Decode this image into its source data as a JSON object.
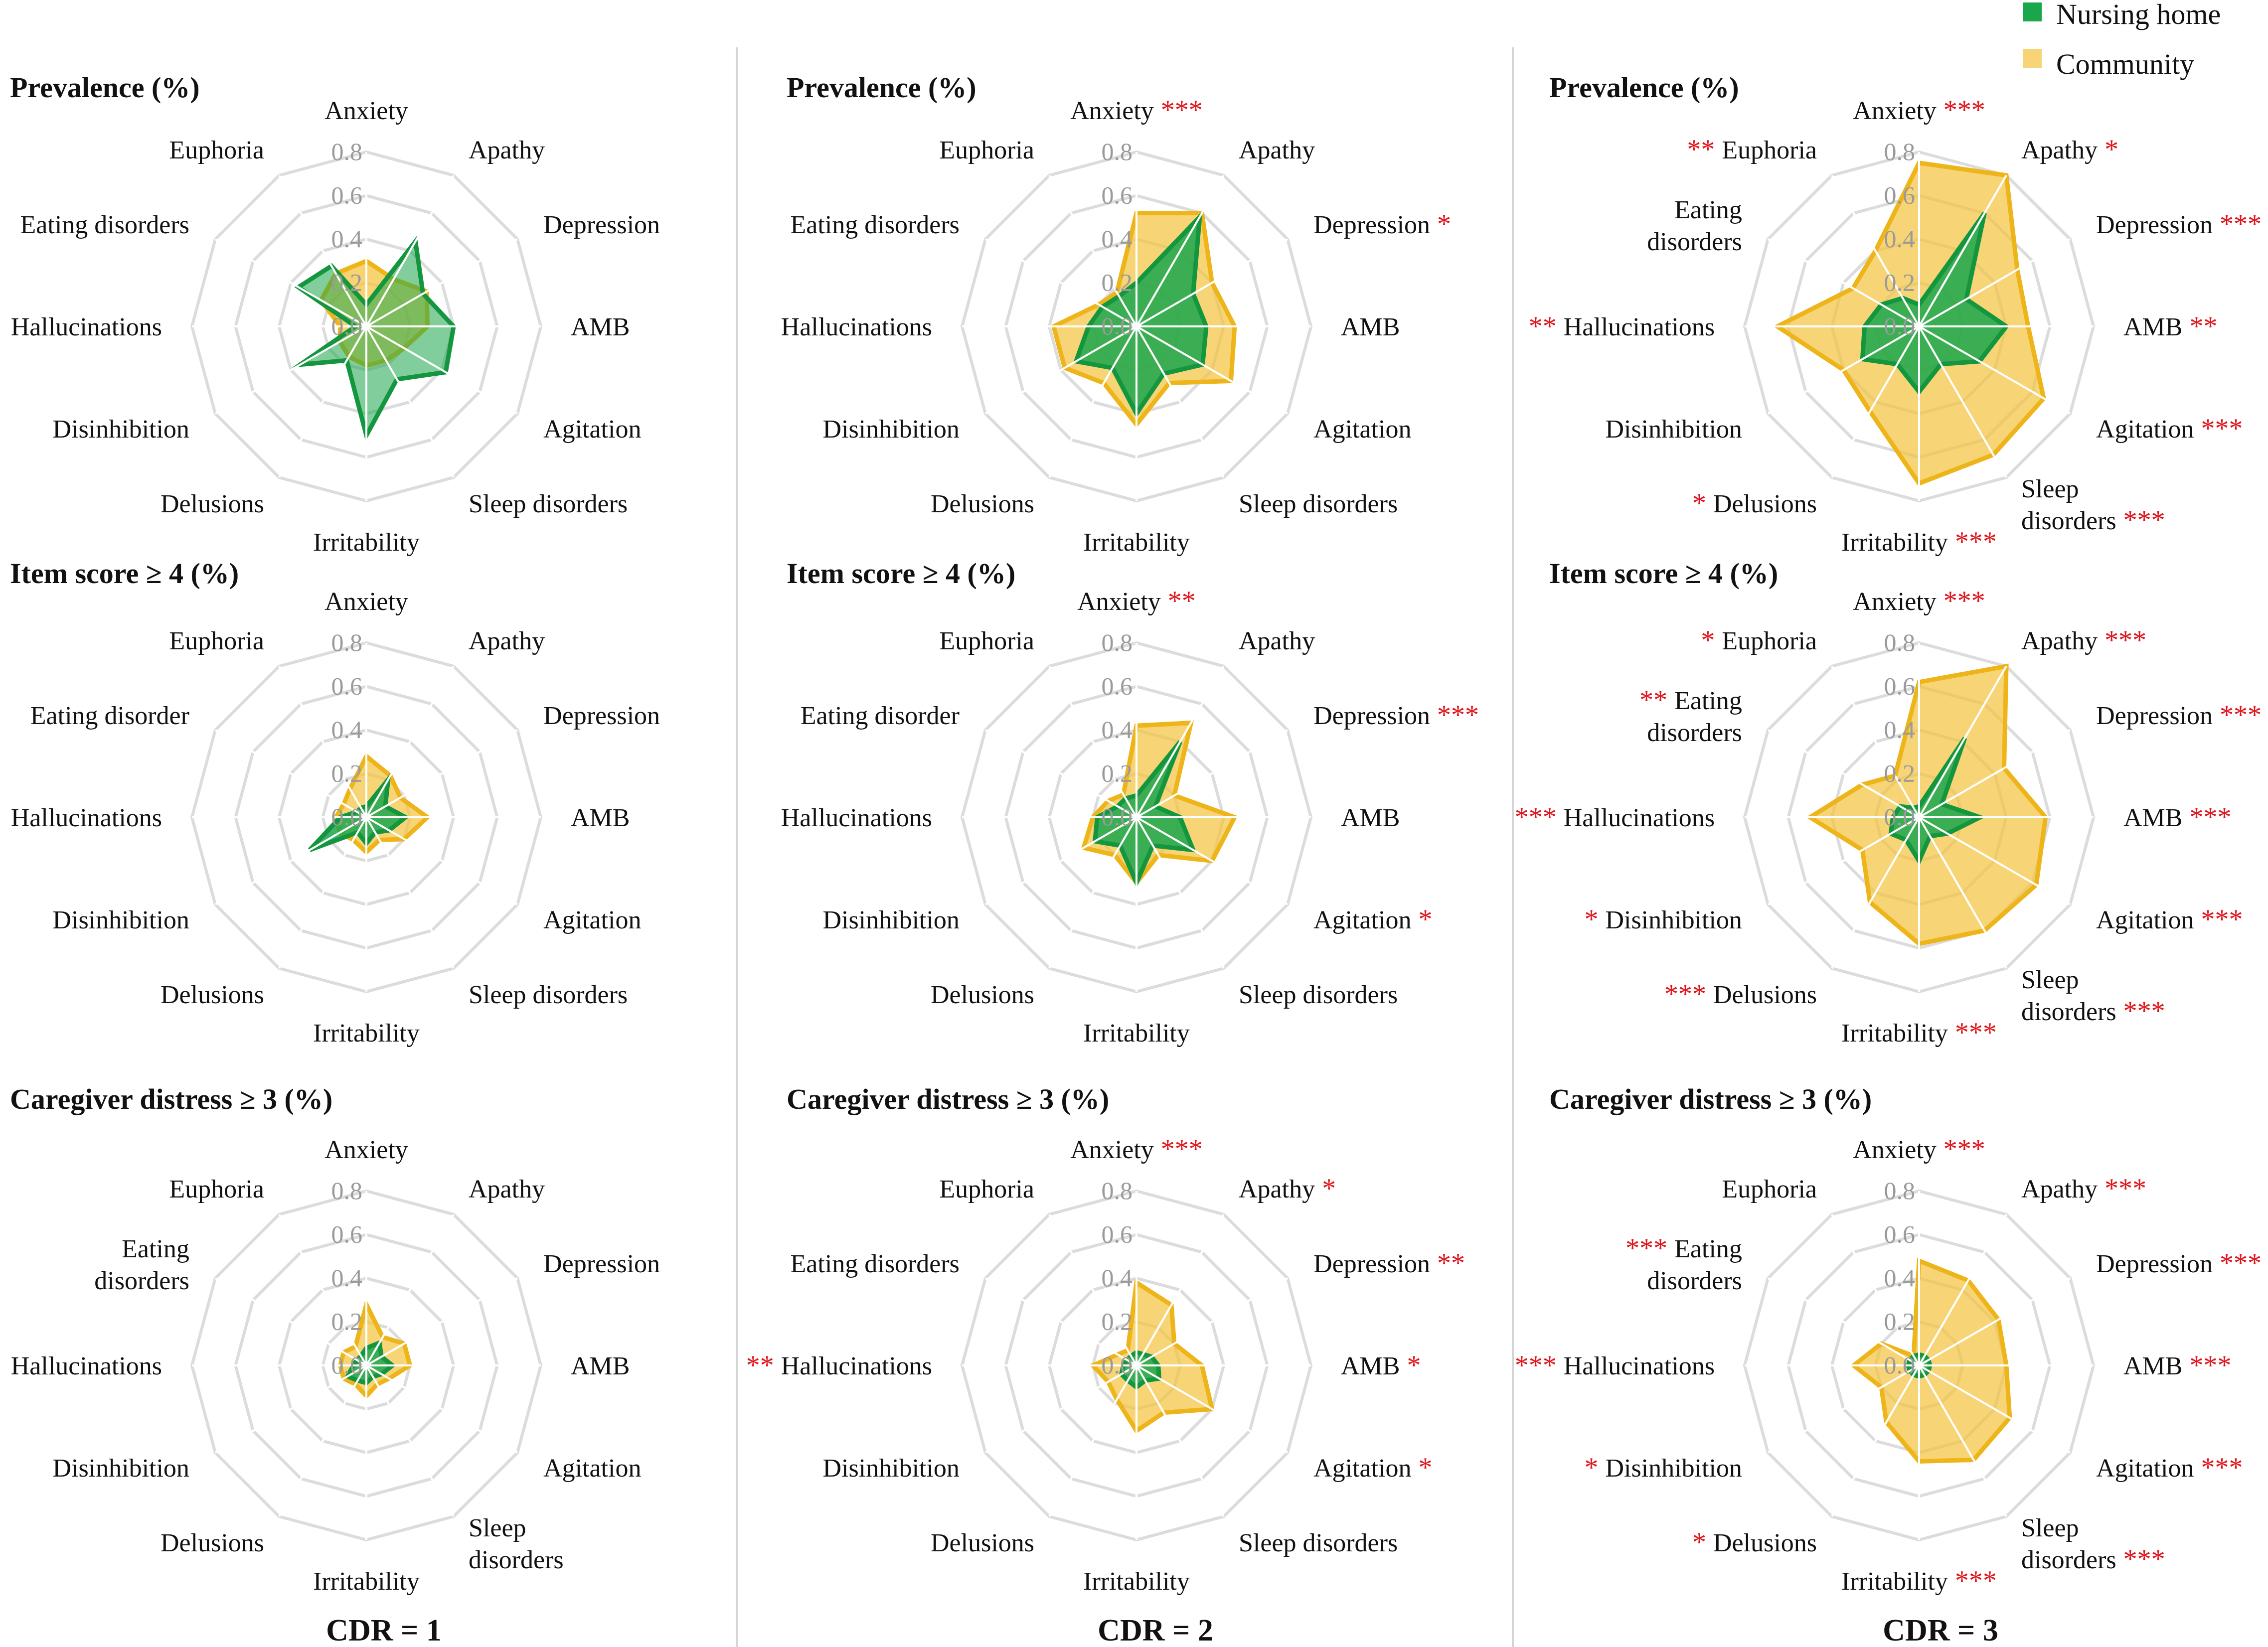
{
  "legend": {
    "items": [
      {
        "label": "Nursing home",
        "color": "#1aa64b"
      },
      {
        "label": "Community",
        "color": "#f7d576"
      }
    ]
  },
  "colors": {
    "nursing_fill": "#1aa64b",
    "nursing_line": "#14963f",
    "community_fill": "#f4c542",
    "community_line": "#eeb51a",
    "star": "#e0161e"
  },
  "tick_labels": [
    "0.0",
    "0.2",
    "0.4",
    "0.6",
    "0.8"
  ],
  "column_labels": [
    "CDR = 1",
    "CDR = 2",
    "CDR = 3"
  ],
  "row_titles": [
    "Prevalence (%)",
    "Item score ≥ 4 (%)",
    "Caregiver distress ≥ 3 (%)"
  ],
  "chart_data": [
    {
      "type": "radar",
      "title": "Prevalence (%)",
      "column": "CDR = 1",
      "rlim": [
        0,
        0.8
      ],
      "axes": [
        {
          "label": "Anxiety",
          "stars": ""
        },
        {
          "label": "Apathy",
          "stars": ""
        },
        {
          "label": "Depression",
          "stars": ""
        },
        {
          "label": "AMB",
          "stars": ""
        },
        {
          "label": "Agitation",
          "stars": ""
        },
        {
          "label": "Sleep disorders",
          "stars": ""
        },
        {
          "label": "Irritability",
          "stars": ""
        },
        {
          "label": "Delusions",
          "stars": ""
        },
        {
          "label": "Disinhibition",
          "stars": ""
        },
        {
          "label": "Hallucinations",
          "stars": ""
        },
        {
          "label": "Eating disorders",
          "stars": ""
        },
        {
          "label": "Euphoria",
          "stars": ""
        }
      ],
      "series": [
        {
          "name": "Community",
          "values": [
            0.3,
            0.25,
            0.32,
            0.28,
            0.2,
            0.18,
            0.18,
            0.16,
            0.14,
            0.12,
            0.24,
            0.28
          ]
        },
        {
          "name": "Nursing home",
          "values": [
            0.1,
            0.45,
            0.3,
            0.4,
            0.42,
            0.28,
            0.5,
            0.18,
            0.35,
            0.05,
            0.36,
            0.32
          ]
        }
      ]
    },
    {
      "type": "radar",
      "title": "Prevalence (%)",
      "column": "CDR = 2",
      "rlim": [
        0,
        0.8
      ],
      "axes": [
        {
          "label": "Anxiety",
          "stars": "***"
        },
        {
          "label": "Apathy",
          "stars": ""
        },
        {
          "label": "Depression",
          "stars": "*"
        },
        {
          "label": "AMB",
          "stars": ""
        },
        {
          "label": "Agitation",
          "stars": ""
        },
        {
          "label": "Sleep disorders",
          "stars": ""
        },
        {
          "label": "Irritability",
          "stars": ""
        },
        {
          "label": "Delusions",
          "stars": ""
        },
        {
          "label": "Disinhibition",
          "stars": ""
        },
        {
          "label": "Hallucinations",
          "stars": ""
        },
        {
          "label": "Eating disorders",
          "stars": ""
        },
        {
          "label": "Euphoria",
          "stars": ""
        }
      ],
      "series": [
        {
          "name": "Community",
          "values": [
            0.52,
            0.6,
            0.4,
            0.45,
            0.5,
            0.3,
            0.45,
            0.3,
            0.38,
            0.38,
            0.2,
            0.18
          ]
        },
        {
          "name": "Nursing home",
          "values": [
            0.2,
            0.58,
            0.3,
            0.32,
            0.35,
            0.25,
            0.4,
            0.22,
            0.32,
            0.22,
            0.18,
            0.16
          ]
        }
      ]
    },
    {
      "type": "radar",
      "title": "Prevalence (%)",
      "column": "CDR = 3",
      "rlim": [
        0,
        0.8
      ],
      "axes": [
        {
          "label": "Anxiety",
          "stars": "***"
        },
        {
          "label": "Apathy",
          "stars": "*"
        },
        {
          "label": "Depression",
          "stars": "***"
        },
        {
          "label": "AMB",
          "stars": "**"
        },
        {
          "label": "Agitation",
          "stars": "***"
        },
        {
          "label": "Sleep disorders",
          "stars": "***"
        },
        {
          "label": "Irritability",
          "stars": "***"
        },
        {
          "label": "Delusions",
          "stars": "*"
        },
        {
          "label": "Disinhibition",
          "stars": ""
        },
        {
          "label": "Hallucinations",
          "stars": "**"
        },
        {
          "label": "Eating disorders",
          "stars": ""
        },
        {
          "label": "Euphoria",
          "stars": "**"
        }
      ],
      "series": [
        {
          "name": "Community",
          "values": [
            0.75,
            0.8,
            0.52,
            0.5,
            0.66,
            0.68,
            0.72,
            0.45,
            0.4,
            0.65,
            0.35,
            0.4
          ]
        },
        {
          "name": "Nursing home",
          "values": [
            0.1,
            0.6,
            0.25,
            0.4,
            0.32,
            0.2,
            0.3,
            0.2,
            0.3,
            0.25,
            0.2,
            0.15
          ]
        }
      ]
    },
    {
      "type": "radar",
      "title": "Item score ≥ 4 (%)",
      "column": "CDR = 1",
      "rlim": [
        0,
        0.8
      ],
      "axes": [
        {
          "label": "Anxiety",
          "stars": ""
        },
        {
          "label": "Apathy",
          "stars": ""
        },
        {
          "label": "Depression",
          "stars": ""
        },
        {
          "label": "AMB",
          "stars": ""
        },
        {
          "label": "Agitation",
          "stars": ""
        },
        {
          "label": "Sleep disorders",
          "stars": ""
        },
        {
          "label": "Irritability",
          "stars": ""
        },
        {
          "label": "Delusions",
          "stars": ""
        },
        {
          "label": "Disinhibition",
          "stars": ""
        },
        {
          "label": "Hallucinations",
          "stars": ""
        },
        {
          "label": "Eating disorder",
          "stars": ""
        },
        {
          "label": "Euphoria",
          "stars": ""
        }
      ],
      "series": [
        {
          "name": "Community",
          "values": [
            0.28,
            0.22,
            0.18,
            0.28,
            0.2,
            0.12,
            0.16,
            0.12,
            0.14,
            0.14,
            0.12,
            0.15
          ]
        },
        {
          "name": "Nursing home",
          "values": [
            0.05,
            0.2,
            0.1,
            0.18,
            0.12,
            0.08,
            0.12,
            0.08,
            0.3,
            0.12,
            0.05,
            0.05
          ]
        }
      ]
    },
    {
      "type": "radar",
      "title": "Item score ≥ 4 (%)",
      "column": "CDR = 2",
      "rlim": [
        0,
        0.8
      ],
      "axes": [
        {
          "label": "Anxiety",
          "stars": "**"
        },
        {
          "label": "Apathy",
          "stars": ""
        },
        {
          "label": "Depression",
          "stars": "***"
        },
        {
          "label": "AMB",
          "stars": ""
        },
        {
          "label": "Agitation",
          "stars": "*"
        },
        {
          "label": "Sleep disorders",
          "stars": ""
        },
        {
          "label": "Irritability",
          "stars": ""
        },
        {
          "label": "Delusions",
          "stars": ""
        },
        {
          "label": "Disinhibition",
          "stars": ""
        },
        {
          "label": "Hallucinations",
          "stars": ""
        },
        {
          "label": "Eating disorder",
          "stars": ""
        },
        {
          "label": "Euphoria",
          "stars": ""
        }
      ],
      "series": [
        {
          "name": "Community",
          "values": [
            0.42,
            0.5,
            0.2,
            0.45,
            0.4,
            0.2,
            0.3,
            0.2,
            0.28,
            0.2,
            0.15,
            0.12
          ]
        },
        {
          "name": "Nursing home",
          "values": [
            0.1,
            0.4,
            0.1,
            0.2,
            0.3,
            0.15,
            0.3,
            0.15,
            0.22,
            0.18,
            0.1,
            0.1
          ]
        }
      ]
    },
    {
      "type": "radar",
      "title": "Item score ≥ 4 (%)",
      "column": "CDR = 3",
      "rlim": [
        0,
        0.8
      ],
      "axes": [
        {
          "label": "Anxiety",
          "stars": "***"
        },
        {
          "label": "Apathy",
          "stars": "***"
        },
        {
          "label": "Depression",
          "stars": "***"
        },
        {
          "label": "AMB",
          "stars": "***"
        },
        {
          "label": "Agitation",
          "stars": "***"
        },
        {
          "label": "Sleep disorders",
          "stars": "***"
        },
        {
          "label": "Irritability",
          "stars": "***"
        },
        {
          "label": "Delusions",
          "stars": "***"
        },
        {
          "label": "Disinhibition",
          "stars": "*"
        },
        {
          "label": "Hallucinations",
          "stars": "***"
        },
        {
          "label": "Eating disorders",
          "stars": "**"
        },
        {
          "label": "Euphoria",
          "stars": "*"
        }
      ],
      "series": [
        {
          "name": "Community",
          "values": [
            0.62,
            0.8,
            0.45,
            0.58,
            0.62,
            0.6,
            0.58,
            0.45,
            0.3,
            0.5,
            0.3,
            0.22
          ]
        },
        {
          "name": "Nursing home",
          "values": [
            0.05,
            0.42,
            0.12,
            0.28,
            0.15,
            0.1,
            0.2,
            0.12,
            0.15,
            0.12,
            0.1,
            0.05
          ]
        }
      ]
    },
    {
      "type": "radar",
      "title": "Caregiver distress ≥ 3 (%)",
      "column": "CDR = 1",
      "rlim": [
        0,
        0.8
      ],
      "axes": [
        {
          "label": "Anxiety",
          "stars": ""
        },
        {
          "label": "Apathy",
          "stars": ""
        },
        {
          "label": "Depression",
          "stars": ""
        },
        {
          "label": "AMB",
          "stars": ""
        },
        {
          "label": "Agitation",
          "stars": ""
        },
        {
          "label": "Sleep disorders",
          "stars": ""
        },
        {
          "label": "Irritability",
          "stars": ""
        },
        {
          "label": "Delusions",
          "stars": ""
        },
        {
          "label": "Disinhibition",
          "stars": ""
        },
        {
          "label": "Hallucinations",
          "stars": ""
        },
        {
          "label": "Eating disorders",
          "stars": ""
        },
        {
          "label": "Euphoria",
          "stars": ""
        }
      ],
      "series": [
        {
          "name": "Community",
          "values": [
            0.28,
            0.15,
            0.2,
            0.2,
            0.12,
            0.1,
            0.14,
            0.1,
            0.12,
            0.12,
            0.12,
            0.1
          ]
        },
        {
          "name": "Nursing home",
          "values": [
            0.08,
            0.12,
            0.08,
            0.12,
            0.08,
            0.06,
            0.08,
            0.08,
            0.1,
            0.06,
            0.05,
            0.05
          ]
        }
      ]
    },
    {
      "type": "radar",
      "title": "Caregiver distress ≥ 3 (%)",
      "column": "CDR = 2",
      "rlim": [
        0,
        0.8
      ],
      "axes": [
        {
          "label": "Anxiety",
          "stars": "***"
        },
        {
          "label": "Apathy",
          "stars": "*"
        },
        {
          "label": "Depression",
          "stars": "**"
        },
        {
          "label": "AMB",
          "stars": "*"
        },
        {
          "label": "Agitation",
          "stars": "*"
        },
        {
          "label": "Sleep disorders",
          "stars": ""
        },
        {
          "label": "Irritability",
          "stars": ""
        },
        {
          "label": "Delusions",
          "stars": ""
        },
        {
          "label": "Disinhibition",
          "stars": ""
        },
        {
          "label": "Hallucinations",
          "stars": "**"
        },
        {
          "label": "Eating disorders",
          "stars": ""
        },
        {
          "label": "Euphoria",
          "stars": ""
        }
      ],
      "series": [
        {
          "name": "Community",
          "values": [
            0.38,
            0.32,
            0.2,
            0.3,
            0.4,
            0.25,
            0.3,
            0.18,
            0.15,
            0.2,
            0.1,
            0.08
          ]
        },
        {
          "name": "Nursing home",
          "values": [
            0.06,
            0.06,
            0.08,
            0.1,
            0.12,
            0.08,
            0.1,
            0.08,
            0.08,
            0.06,
            0.05,
            0.05
          ]
        }
      ]
    },
    {
      "type": "radar",
      "title": "Caregiver distress ≥ 3 (%)",
      "column": "CDR = 3",
      "rlim": [
        0,
        0.8
      ],
      "axes": [
        {
          "label": "Anxiety",
          "stars": "***"
        },
        {
          "label": "Apathy",
          "stars": "***"
        },
        {
          "label": "Depression",
          "stars": "***"
        },
        {
          "label": "AMB",
          "stars": "***"
        },
        {
          "label": "Agitation",
          "stars": "***"
        },
        {
          "label": "Sleep disorders",
          "stars": "***"
        },
        {
          "label": "Irritability",
          "stars": "***"
        },
        {
          "label": "Delusions",
          "stars": "*"
        },
        {
          "label": "Disinhibition",
          "stars": "*"
        },
        {
          "label": "Hallucinations",
          "stars": "***"
        },
        {
          "label": "Eating disorders",
          "stars": "***"
        },
        {
          "label": "Euphoria",
          "stars": ""
        }
      ],
      "series": [
        {
          "name": "Community",
          "values": [
            0.48,
            0.45,
            0.42,
            0.4,
            0.48,
            0.5,
            0.44,
            0.3,
            0.2,
            0.3,
            0.2,
            0.05
          ]
        },
        {
          "name": "Nursing home",
          "values": [
            0.05,
            0.05,
            0.05,
            0.05,
            0.05,
            0.05,
            0.05,
            0.05,
            0.05,
            0.05,
            0.05,
            0.05
          ]
        }
      ]
    }
  ]
}
